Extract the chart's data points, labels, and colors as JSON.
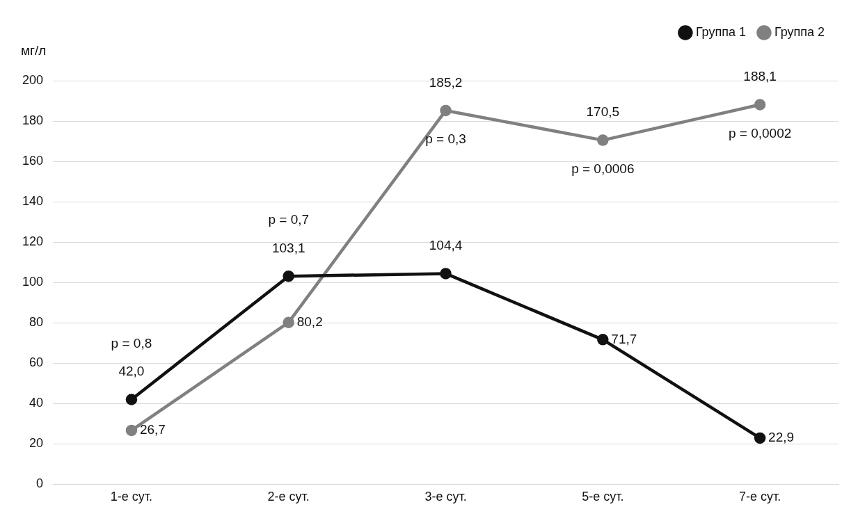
{
  "chart_data": {
    "type": "line",
    "ylabel": "мг/л",
    "categories": [
      "1-е сут.",
      "2-е сут.",
      "3-е сут.",
      "5-е сут.",
      "7-е сут."
    ],
    "series": [
      {
        "name": "Группа 1",
        "color": "#111111",
        "values": [
          42.0,
          103.1,
          104.4,
          71.7,
          22.9
        ],
        "value_labels": [
          "42,0",
          "103,1",
          "104,4",
          "71,7",
          "22,9"
        ]
      },
      {
        "name": "Группа 2",
        "color": "#808080",
        "values": [
          26.7,
          80.2,
          185.2,
          170.5,
          188.1
        ],
        "value_labels": [
          "26,7",
          "80,2",
          "185,2",
          "170,5",
          "188,1"
        ]
      }
    ],
    "ylim": [
      0,
      200
    ],
    "yticks": [
      0,
      20,
      40,
      60,
      80,
      100,
      120,
      140,
      160,
      180,
      200
    ],
    "grid": "y",
    "legend": "top right",
    "marker": "circle",
    "line_style": "solid",
    "annotations": [
      "p = 0,8",
      "p = 0,7",
      "p = 0,3",
      "p = 0,0006",
      "p = 0,0002"
    ]
  }
}
